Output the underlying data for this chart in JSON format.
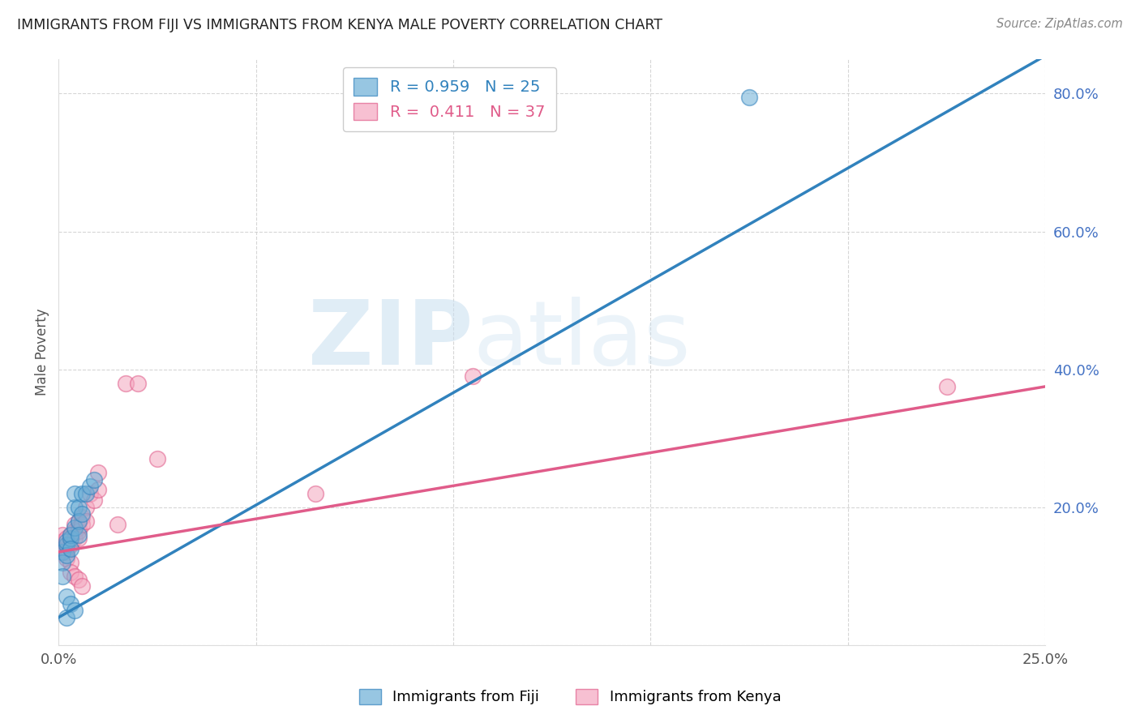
{
  "title": "IMMIGRANTS FROM FIJI VS IMMIGRANTS FROM KENYA MALE POVERTY CORRELATION CHART",
  "source": "Source: ZipAtlas.com",
  "ylabel": "Male Poverty",
  "x_min": 0.0,
  "x_max": 0.25,
  "y_min": 0.0,
  "y_max": 0.85,
  "right_yticks": [
    0.0,
    0.2,
    0.4,
    0.6,
    0.8
  ],
  "right_yticklabels": [
    "",
    "20.0%",
    "40.0%",
    "60.0%",
    "80.0%"
  ],
  "bottom_xticks": [
    0.0,
    0.05,
    0.1,
    0.15,
    0.2,
    0.25
  ],
  "bottom_xticklabels": [
    "0.0%",
    "",
    "",
    "",
    "",
    "25.0%"
  ],
  "fiji_color": "#6baed6",
  "kenya_color": "#f4a6bf",
  "fiji_line_color": "#3182bd",
  "kenya_line_color": "#e05c8a",
  "fiji_R": 0.959,
  "fiji_N": 25,
  "kenya_R": 0.411,
  "kenya_N": 37,
  "watermark_zip": "ZIP",
  "watermark_atlas": "atlas",
  "fiji_scatter_x": [
    0.001,
    0.001,
    0.001,
    0.002,
    0.002,
    0.002,
    0.002,
    0.002,
    0.003,
    0.003,
    0.003,
    0.003,
    0.004,
    0.004,
    0.004,
    0.004,
    0.005,
    0.005,
    0.005,
    0.006,
    0.006,
    0.007,
    0.008,
    0.009,
    0.175
  ],
  "fiji_scatter_y": [
    0.135,
    0.12,
    0.1,
    0.145,
    0.15,
    0.13,
    0.07,
    0.04,
    0.155,
    0.16,
    0.14,
    0.06,
    0.2,
    0.22,
    0.17,
    0.05,
    0.2,
    0.18,
    0.16,
    0.22,
    0.19,
    0.22,
    0.23,
    0.24,
    0.795
  ],
  "kenya_scatter_x": [
    0.001,
    0.001,
    0.001,
    0.002,
    0.002,
    0.002,
    0.002,
    0.003,
    0.003,
    0.003,
    0.003,
    0.003,
    0.004,
    0.004,
    0.004,
    0.004,
    0.005,
    0.005,
    0.005,
    0.005,
    0.005,
    0.006,
    0.006,
    0.006,
    0.007,
    0.007,
    0.008,
    0.009,
    0.01,
    0.01,
    0.015,
    0.017,
    0.02,
    0.025,
    0.065,
    0.105,
    0.225
  ],
  "kenya_scatter_y": [
    0.14,
    0.15,
    0.16,
    0.145,
    0.155,
    0.135,
    0.125,
    0.16,
    0.155,
    0.145,
    0.12,
    0.105,
    0.175,
    0.165,
    0.155,
    0.1,
    0.18,
    0.17,
    0.165,
    0.155,
    0.095,
    0.185,
    0.175,
    0.085,
    0.2,
    0.18,
    0.22,
    0.21,
    0.225,
    0.25,
    0.175,
    0.38,
    0.38,
    0.27,
    0.22,
    0.39,
    0.375
  ],
  "fiji_line_x0": 0.0,
  "fiji_line_y0": 0.04,
  "fiji_line_x1": 0.25,
  "fiji_line_y1": 0.855,
  "kenya_line_x0": 0.0,
  "kenya_line_y0": 0.135,
  "kenya_line_x1": 0.25,
  "kenya_line_y1": 0.375,
  "background_color": "#ffffff",
  "grid_color": "#cccccc"
}
